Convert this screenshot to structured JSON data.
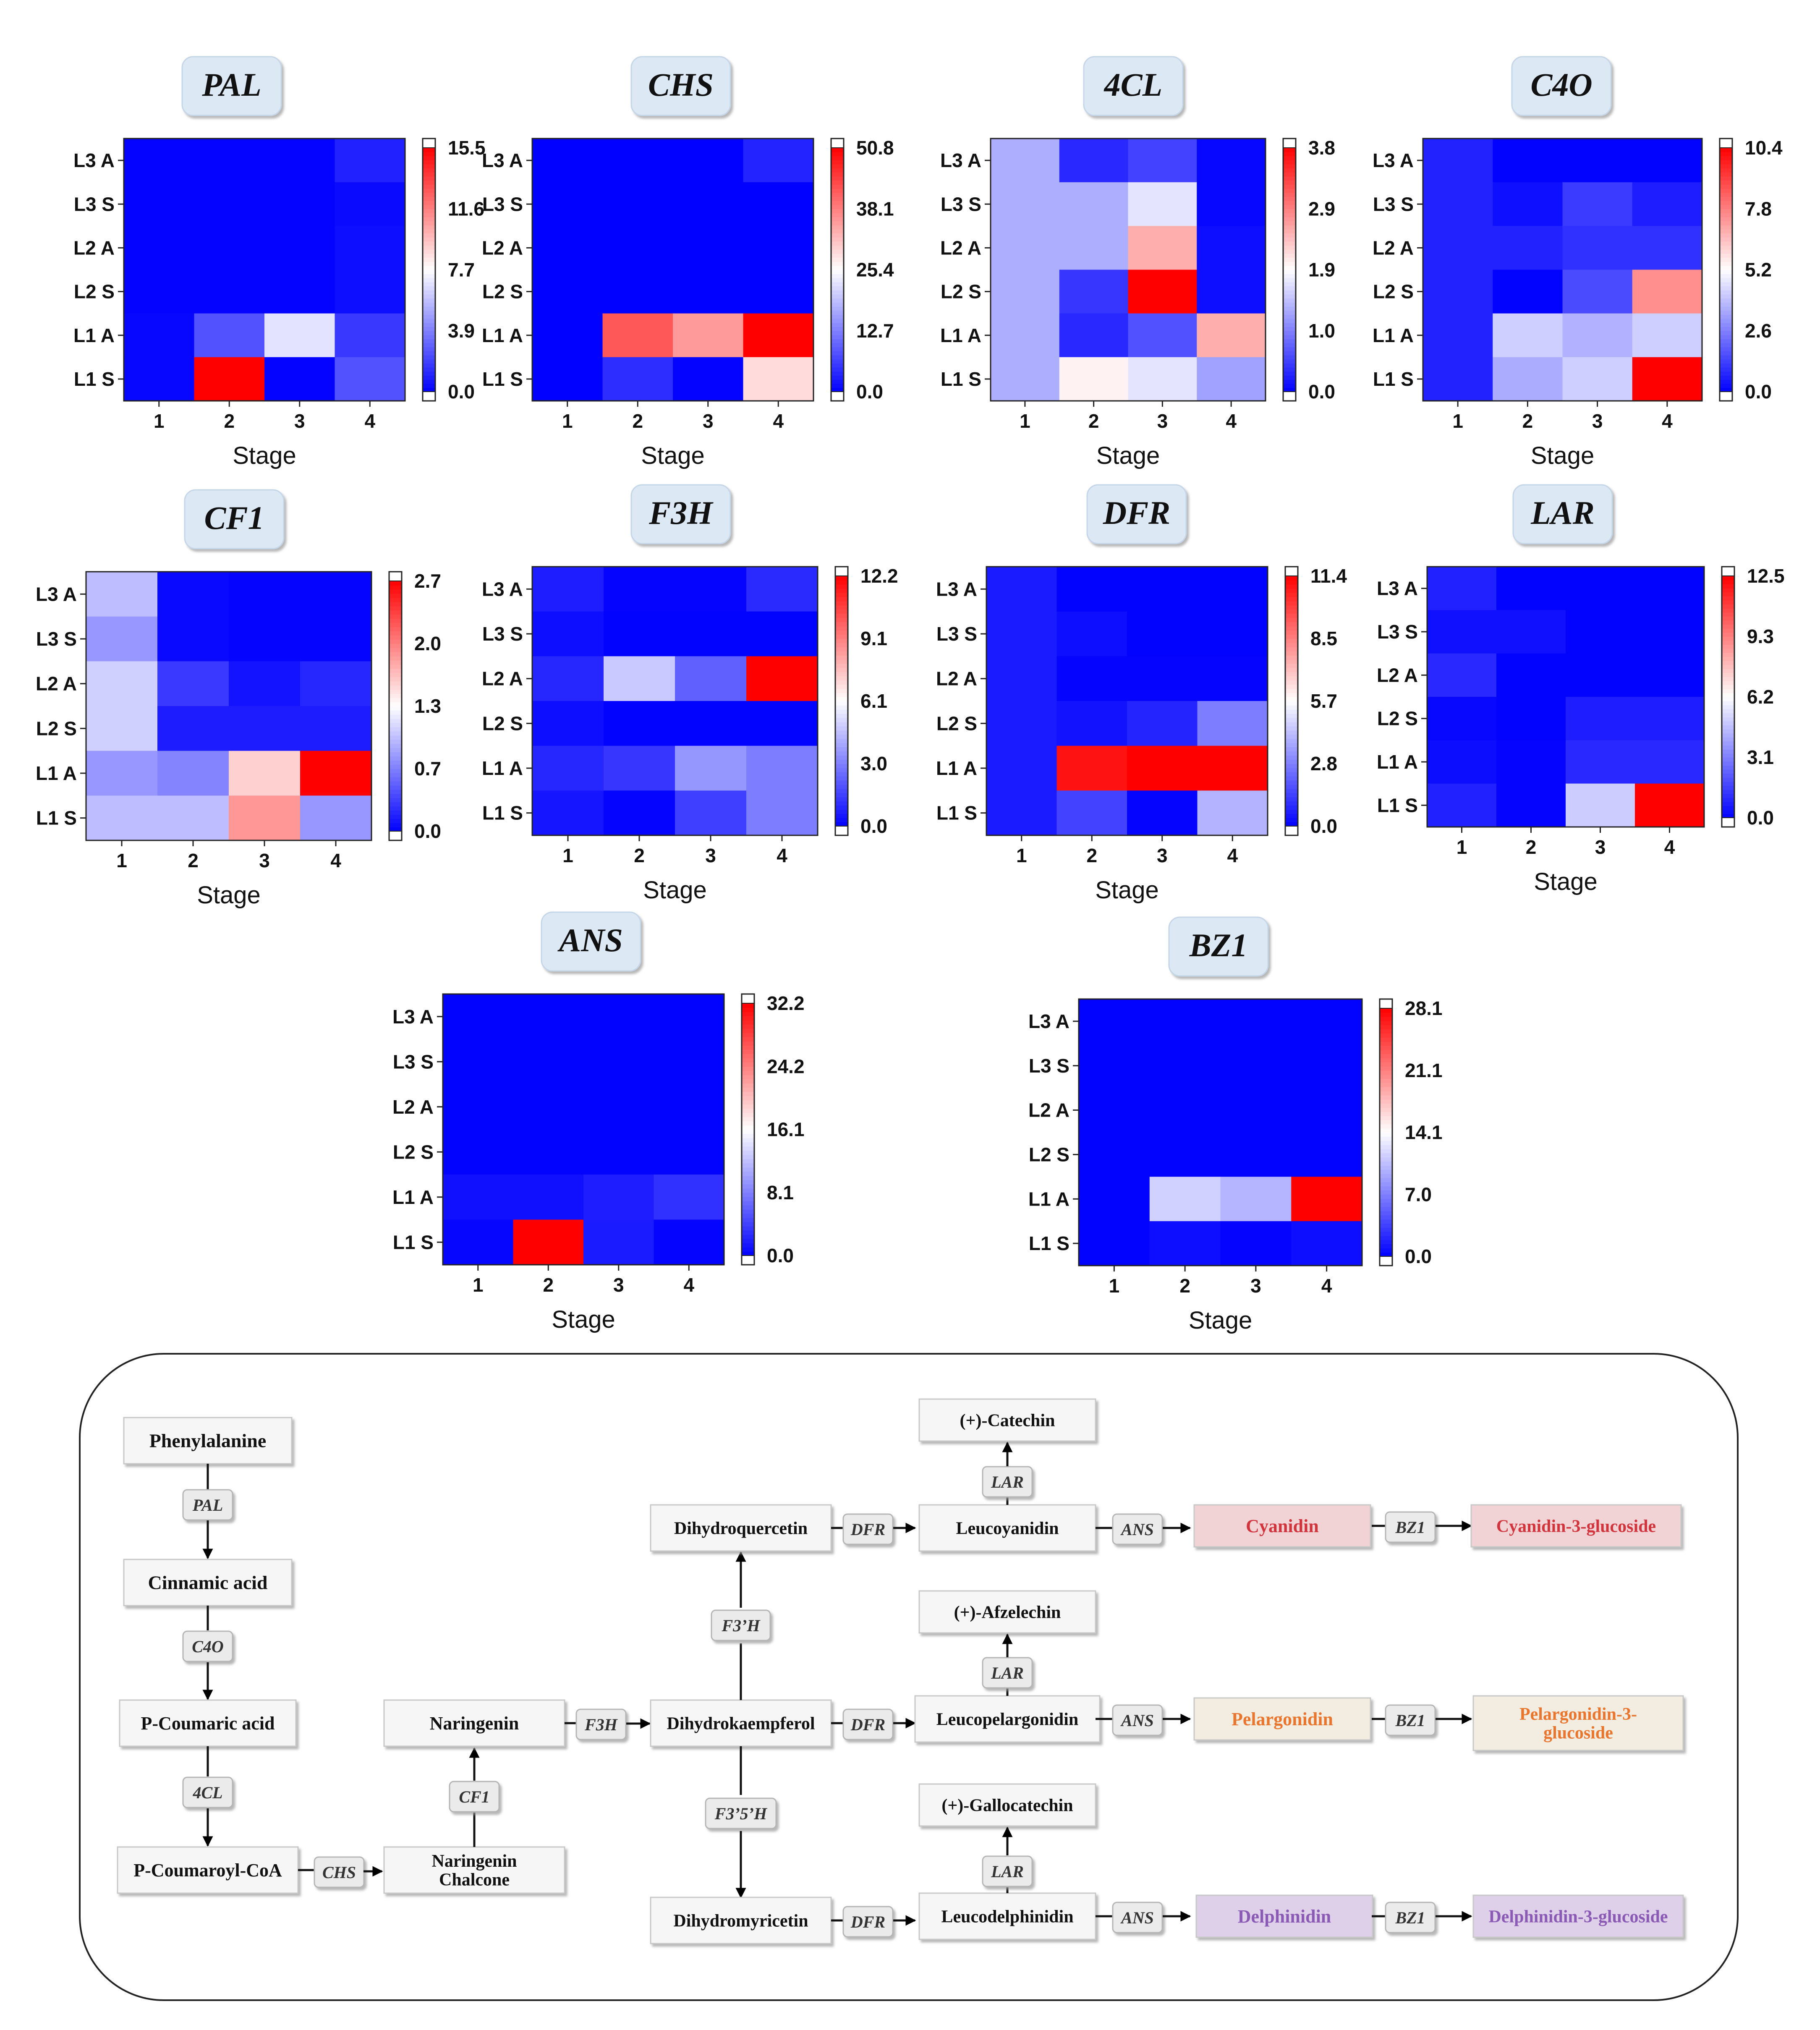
{
  "chart_data": [
    {
      "type": "heatmap",
      "gene": "PAL",
      "title": "PAL",
      "xlabel": "Stage",
      "x_categories": [
        "1",
        "2",
        "3",
        "4"
      ],
      "y_categories": [
        "L3 A",
        "L3 S",
        "L2 A",
        "L2 S",
        "L1 A",
        "L1 S"
      ],
      "colorbar_ticks": [
        "0.0",
        "3.9",
        "7.7",
        "11.6",
        "15.5"
      ],
      "vmin": 0,
      "vmax": 15.5,
      "values": [
        [
          0.1,
          0.1,
          0.1,
          1.0
        ],
        [
          0.1,
          0.1,
          0.1,
          0.3
        ],
        [
          0.1,
          0.1,
          0.1,
          0.4
        ],
        [
          0.1,
          0.1,
          0.1,
          0.4
        ],
        [
          0.2,
          2.5,
          6.9,
          1.7
        ],
        [
          0.2,
          15.5,
          0.1,
          2.5
        ]
      ]
    },
    {
      "type": "heatmap",
      "gene": "CHS",
      "title": "CHS",
      "xlabel": "Stage",
      "x_categories": [
        "1",
        "2",
        "3",
        "4"
      ],
      "y_categories": [
        "L3 A",
        "L3 S",
        "L2 A",
        "L2 S",
        "L1 A",
        "L1 S"
      ],
      "colorbar_ticks": [
        "0.0",
        "12.7",
        "25.4",
        "38.1",
        "50.8"
      ],
      "vmin": 0,
      "vmax": 50.8,
      "values": [
        [
          0.1,
          0.1,
          0.1,
          3.5
        ],
        [
          0.1,
          0.1,
          0.1,
          0.1
        ],
        [
          0.1,
          0.1,
          0.1,
          0.1
        ],
        [
          0.1,
          0.1,
          0.1,
          0.1
        ],
        [
          0.1,
          42.0,
          35.5,
          50.8
        ],
        [
          0.1,
          4.5,
          0.3,
          29.0
        ]
      ]
    },
    {
      "type": "heatmap",
      "gene": "4CL",
      "title": "4CL",
      "xlabel": "Stage",
      "x_categories": [
        "1",
        "2",
        "3",
        "4"
      ],
      "y_categories": [
        "L3 A",
        "L3 S",
        "L2 A",
        "L2 S",
        "L1 A",
        "L1 S"
      ],
      "colorbar_ticks": [
        "0.0",
        "1.0",
        "1.9",
        "2.9",
        "3.8"
      ],
      "vmin": 0,
      "vmax": 3.8,
      "values": [
        [
          1.3,
          0.3,
          0.5,
          0.05
        ],
        [
          1.3,
          1.3,
          1.7,
          0.05
        ],
        [
          1.3,
          1.3,
          2.5,
          0.1
        ],
        [
          1.3,
          0.4,
          3.8,
          0.1
        ],
        [
          1.3,
          0.3,
          0.6,
          2.5
        ],
        [
          1.3,
          2.0,
          1.7,
          1.2
        ]
      ]
    },
    {
      "type": "heatmap",
      "gene": "C4O",
      "title": "C4O",
      "xlabel": "Stage",
      "x_categories": [
        "1",
        "2",
        "3",
        "4"
      ],
      "y_categories": [
        "L3 A",
        "L3 S",
        "L2 A",
        "L2 S",
        "L1 A",
        "L1 S"
      ],
      "colorbar_ticks": [
        "0.0",
        "2.6",
        "5.2",
        "7.8",
        "10.4"
      ],
      "vmin": 0,
      "vmax": 10.4,
      "values": [
        [
          0.7,
          0.05,
          0.05,
          0.05
        ],
        [
          0.7,
          0.3,
          1.2,
          0.6
        ],
        [
          0.7,
          0.7,
          1.0,
          1.0
        ],
        [
          0.7,
          0.05,
          1.5,
          7.5
        ],
        [
          0.7,
          4.2,
          3.6,
          4.2
        ],
        [
          0.7,
          3.5,
          4.2,
          10.4
        ]
      ]
    },
    {
      "type": "heatmap",
      "gene": "CF1",
      "title": "CF1",
      "xlabel": "Stage",
      "x_categories": [
        "1",
        "2",
        "3",
        "4"
      ],
      "y_categories": [
        "L3 A",
        "L3 S",
        "L2 A",
        "L2 S",
        "L1 A",
        "L1 S"
      ],
      "colorbar_ticks": [
        "0.0",
        "0.7",
        "1.3",
        "2.0",
        "2.7"
      ],
      "vmin": 0,
      "vmax": 2.7,
      "values": [
        [
          1.0,
          0.05,
          0.02,
          0.02
        ],
        [
          0.8,
          0.05,
          0.02,
          0.02
        ],
        [
          1.1,
          0.3,
          0.1,
          0.2
        ],
        [
          1.1,
          0.15,
          0.15,
          0.15
        ],
        [
          0.8,
          0.7,
          1.6,
          2.7
        ],
        [
          1.0,
          1.0,
          1.9,
          0.8
        ]
      ]
    },
    {
      "type": "heatmap",
      "gene": "F3H",
      "title": "F3H",
      "xlabel": "Stage",
      "x_categories": [
        "1",
        "2",
        "3",
        "4"
      ],
      "y_categories": [
        "L3 A",
        "L3 S",
        "L2 A",
        "L2 S",
        "L1 A",
        "L1 S"
      ],
      "colorbar_ticks": [
        "0.0",
        "3.0",
        "6.1",
        "9.1",
        "12.2"
      ],
      "vmin": 0,
      "vmax": 12.2,
      "values": [
        [
          0.7,
          0.1,
          0.1,
          1.0
        ],
        [
          0.3,
          0.05,
          0.05,
          0.05
        ],
        [
          0.9,
          4.8,
          2.3,
          12.2
        ],
        [
          0.3,
          0.05,
          0.05,
          0.05
        ],
        [
          0.9,
          1.3,
          3.6,
          3.0
        ],
        [
          0.5,
          0.1,
          1.5,
          3.0
        ]
      ]
    },
    {
      "type": "heatmap",
      "gene": "DFR",
      "title": "DFR",
      "xlabel": "Stage",
      "x_categories": [
        "1",
        "2",
        "3",
        "4"
      ],
      "y_categories": [
        "L3 A",
        "L3 S",
        "L2 A",
        "L2 S",
        "L1 A",
        "L1 S"
      ],
      "colorbar_ticks": [
        "0.0",
        "2.8",
        "5.7",
        "8.5",
        "11.4"
      ],
      "vmin": 0,
      "vmax": 11.4,
      "values": [
        [
          0.6,
          0.05,
          0.05,
          0.05
        ],
        [
          0.6,
          0.3,
          0.05,
          0.05
        ],
        [
          0.6,
          0.1,
          0.1,
          0.1
        ],
        [
          0.6,
          0.4,
          0.8,
          2.8
        ],
        [
          0.6,
          11.0,
          11.4,
          11.4
        ],
        [
          0.6,
          1.5,
          0.1,
          4.0
        ]
      ]
    },
    {
      "type": "heatmap",
      "gene": "LAR",
      "title": "LAR",
      "xlabel": "Stage",
      "x_categories": [
        "1",
        "2",
        "3",
        "4"
      ],
      "y_categories": [
        "L3 A",
        "L3 S",
        "L2 A",
        "L2 S",
        "L1 A",
        "L1 S"
      ],
      "colorbar_ticks": [
        "0.0",
        "3.1",
        "6.2",
        "9.3",
        "12.5"
      ],
      "vmin": 0,
      "vmax": 12.5,
      "values": [
        [
          0.8,
          0.05,
          0.05,
          0.05
        ],
        [
          0.4,
          0.4,
          0.05,
          0.05
        ],
        [
          1.0,
          0.05,
          0.05,
          0.05
        ],
        [
          0.2,
          0.05,
          0.7,
          0.7
        ],
        [
          0.3,
          0.1,
          1.0,
          1.0
        ],
        [
          0.8,
          0.1,
          5.0,
          12.5
        ]
      ]
    },
    {
      "type": "heatmap",
      "gene": "ANS",
      "title": "ANS",
      "xlabel": "Stage",
      "x_categories": [
        "1",
        "2",
        "3",
        "4"
      ],
      "y_categories": [
        "L3 A",
        "L3 S",
        "L2 A",
        "L2 S",
        "L1 A",
        "L1 S"
      ],
      "colorbar_ticks": [
        "0.0",
        "8.1",
        "16.1",
        "24.2",
        "32.2"
      ],
      "vmin": 0,
      "vmax": 32.2,
      "values": [
        [
          0.1,
          0.1,
          0.1,
          0.1
        ],
        [
          0.1,
          0.1,
          0.1,
          0.1
        ],
        [
          0.1,
          0.1,
          0.1,
          0.1
        ],
        [
          0.1,
          0.1,
          0.1,
          0.1
        ],
        [
          1.0,
          1.0,
          1.8,
          3.0
        ],
        [
          0.4,
          32.2,
          1.7,
          0.3
        ]
      ]
    },
    {
      "type": "heatmap",
      "gene": "BZ1",
      "title": "BZ1",
      "xlabel": "Stage",
      "x_categories": [
        "1",
        "2",
        "3",
        "4"
      ],
      "y_categories": [
        "L3 A",
        "L3 S",
        "L2 A",
        "L2 S",
        "L1 A",
        "L1 S"
      ],
      "colorbar_ticks": [
        "0.0",
        "7.0",
        "14.1",
        "21.1",
        "28.1"
      ],
      "vmin": 0,
      "vmax": 28.1,
      "values": [
        [
          0.1,
          0.1,
          0.1,
          0.1
        ],
        [
          0.1,
          0.1,
          0.1,
          0.1
        ],
        [
          0.1,
          0.1,
          0.1,
          0.1
        ],
        [
          0.1,
          0.1,
          0.1,
          0.1
        ],
        [
          0.1,
          11.5,
          10.0,
          28.1
        ],
        [
          0.1,
          0.7,
          0.3,
          0.7
        ]
      ]
    }
  ],
  "pathway": {
    "nodes": {
      "phenylalanine": "Phenylalanine",
      "cinnamic_acid": "Cinnamic acid",
      "p_coumaric_acid": "P-Coumaric acid",
      "p_coumaroyl_coa": "P-Coumaroyl-CoA",
      "naringenin_chalcone": "Naringenin Chalcone",
      "naringenin": "Naringenin",
      "dihydrokaempferol": "Dihydrokaempferol",
      "dihydroquercetin": "Dihydroquercetin",
      "dihydromyricetin": "Dihydromyricetin",
      "leucocyanidin": "Leucoyanidin",
      "leucopelargonidin": "Leucopelargonidin",
      "leucodelphinidin": "Leucodelphinidin",
      "catechin": "(+)-Catechin",
      "afzelechin": "(+)-Afzelechin",
      "gallocatechin": "(+)-Gallocatechin",
      "cyanidin": "Cyanidin",
      "pelargonidin": "Pelargonidin",
      "delphinidin": "Delphinidin",
      "cyanidin_3_glucoside": "Cyanidin-3-glucoside",
      "pelargonidin_3_glucoside": "Pelargonidin-3-glucoside",
      "delphinidin_3_glucoside": "Delphinidin-3-glucoside"
    },
    "enzymes": {
      "pal": "PAL",
      "c4o": "C4O",
      "fourcl": "4CL",
      "chs": "CHS",
      "cf1": "CF1",
      "f3h": "F3H",
      "f3h_prime": "F3’H",
      "f3_5h": "F3’5’H",
      "dfr_q": "DFR",
      "dfr_k": "DFR",
      "dfr_m": "DFR",
      "lar_c": "LAR",
      "lar_p": "LAR",
      "lar_d": "LAR",
      "ans_c": "ANS",
      "ans_p": "ANS",
      "ans_d": "ANS",
      "bz1_c": "BZ1",
      "bz1_p": "BZ1",
      "bz1_d": "BZ1"
    },
    "colors": {
      "cyanidin_text": "#d0343d",
      "cyanidin_fill": "#f2d3d5",
      "pelargonidin_text": "#e8762f",
      "pelargonidin_fill": "#f3ece0",
      "delphinidin_text": "#8a5ab5",
      "delphinidin_fill": "#ddd0e8"
    }
  }
}
